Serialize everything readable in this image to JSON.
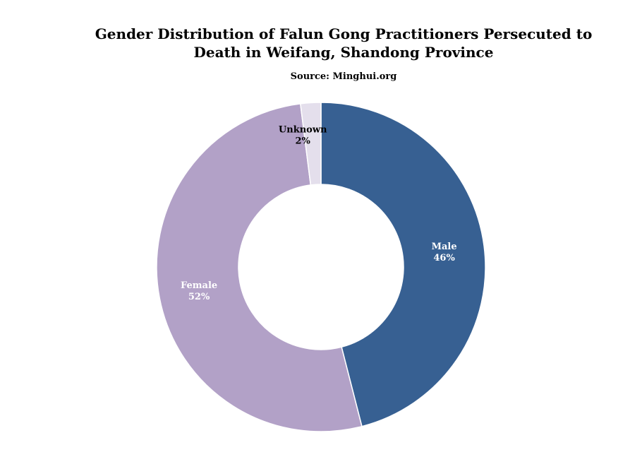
{
  "chart_data": {
    "type": "pie",
    "title_lines": [
      "Gender Distribution of Falun Gong Practitioners Persecuted to",
      "Death in Weifang, Shandong Province"
    ],
    "subtitle": "Source: Minghui.org",
    "donut": true,
    "slices": [
      {
        "label": "Male",
        "value": 46,
        "value_label": "46%",
        "color": "#376092",
        "label_color": "#ffffff"
      },
      {
        "label": "Female",
        "value": 52,
        "value_label": "52%",
        "color": "#b2a1c7",
        "label_color": "#ffffff"
      },
      {
        "label": "Unknown",
        "value": 2,
        "value_label": "2%",
        "color": "#e4dfec",
        "label_color": "#000000"
      }
    ],
    "slice_border_color": "#ffffff"
  }
}
